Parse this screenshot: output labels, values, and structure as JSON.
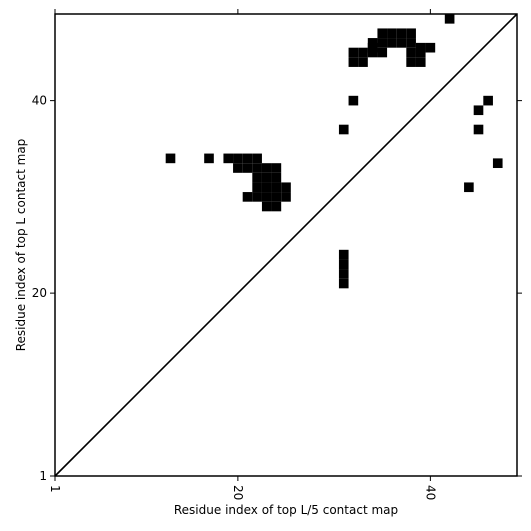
{
  "chart_data": {
    "type": "heatmap",
    "title": "",
    "xlabel": "Residue index of top L/5 contact map",
    "ylabel": "Residue index of top L contact map",
    "xlim": [
      1,
      49
    ],
    "ylim": [
      1,
      49
    ],
    "xticks": [
      1,
      20,
      40
    ],
    "yticks": [
      1,
      20,
      40
    ],
    "grid": false,
    "diagonal": true,
    "colors": {
      "cell": "#000000",
      "background": "#ffffff",
      "frame": "#000000"
    },
    "cells": [
      [
        42,
        48.5
      ],
      [
        35,
        47
      ],
      [
        36,
        47
      ],
      [
        37,
        47
      ],
      [
        38,
        47
      ],
      [
        39,
        45.5
      ],
      [
        40,
        45.5
      ],
      [
        34,
        46
      ],
      [
        34,
        45.5
      ],
      [
        35,
        46
      ],
      [
        36,
        46
      ],
      [
        37,
        46
      ],
      [
        38,
        46
      ],
      [
        32,
        45
      ],
      [
        33,
        45
      ],
      [
        34,
        45
      ],
      [
        35,
        45
      ],
      [
        38,
        45
      ],
      [
        39,
        45
      ],
      [
        32,
        44
      ],
      [
        33,
        44
      ],
      [
        38,
        44
      ],
      [
        39,
        44
      ],
      [
        32,
        40
      ],
      [
        31,
        37
      ],
      [
        46,
        40
      ],
      [
        45,
        39
      ],
      [
        45,
        37
      ],
      [
        47,
        33.5
      ],
      [
        44,
        31
      ],
      [
        13,
        34
      ],
      [
        17,
        34
      ],
      [
        19,
        34
      ],
      [
        20,
        34
      ],
      [
        21,
        34
      ],
      [
        22,
        34
      ],
      [
        20,
        33
      ],
      [
        21,
        33
      ],
      [
        22,
        33
      ],
      [
        23,
        33
      ],
      [
        24,
        33
      ],
      [
        22,
        32
      ],
      [
        23,
        32
      ],
      [
        24,
        32
      ],
      [
        22,
        31
      ],
      [
        23,
        31
      ],
      [
        24,
        31
      ],
      [
        25,
        31
      ],
      [
        21,
        30
      ],
      [
        22,
        30
      ],
      [
        23,
        30
      ],
      [
        24,
        30
      ],
      [
        25,
        30
      ],
      [
        23,
        29
      ],
      [
        24,
        29
      ],
      [
        31,
        24
      ],
      [
        31,
        23
      ],
      [
        31,
        22
      ],
      [
        31,
        21
      ]
    ]
  }
}
